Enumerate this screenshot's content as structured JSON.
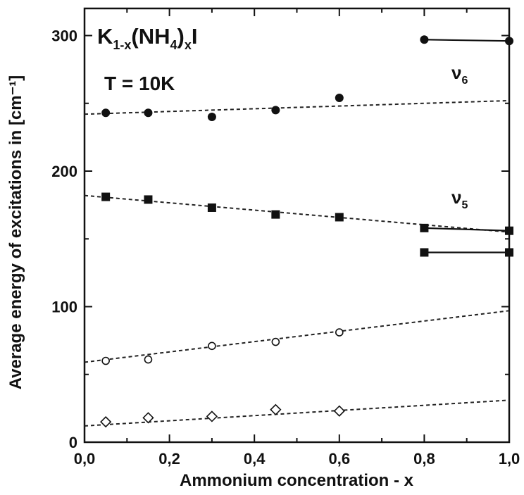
{
  "chart_data": {
    "type": "scatter",
    "xlabel": "Ammonium concentration - x",
    "ylabel": "Average energy of excitations in [cm⁻¹]",
    "xlim": [
      0.0,
      1.0
    ],
    "ylim": [
      0,
      320
    ],
    "x_tick_labels": [
      "0,0",
      "0,2",
      "0,4",
      "0,6",
      "0,8",
      "1,0"
    ],
    "x_ticks": [
      0.0,
      0.2,
      0.4,
      0.6,
      0.8,
      1.0
    ],
    "y_tick_labels": [
      "0",
      "100",
      "200",
      "300"
    ],
    "y_ticks": [
      0,
      100,
      200,
      300
    ],
    "grid": false,
    "annotations": {
      "formula": {
        "a": "K",
        "b": "1-x",
        "c": "(NH",
        "d": "4",
        "e": ")",
        "f": "x",
        "g": "I"
      },
      "temperature": "T = 10K",
      "nu6": {
        "sym": "ν",
        "sub": "6"
      },
      "nu5": {
        "sym": "ν",
        "sub": "5"
      }
    },
    "series": [
      {
        "marker": "filled-circle",
        "x": [
          0.05,
          0.15,
          0.3,
          0.45,
          0.6
        ],
        "y": [
          243,
          243,
          240,
          245,
          254
        ],
        "fit": [
          [
            0.0,
            242
          ],
          [
            1.0,
            252
          ]
        ]
      },
      {
        "marker": "filled-square",
        "x": [
          0.05,
          0.15,
          0.3,
          0.45,
          0.6
        ],
        "y": [
          181,
          179,
          173,
          168,
          166
        ],
        "fit": [
          [
            0.0,
            182
          ],
          [
            1.0,
            155
          ]
        ]
      },
      {
        "marker": "open-circle",
        "x": [
          0.05,
          0.15,
          0.3,
          0.45,
          0.6
        ],
        "y": [
          60,
          61,
          71,
          74,
          81
        ],
        "fit": [
          [
            0.0,
            59
          ],
          [
            1.0,
            97
          ]
        ]
      },
      {
        "marker": "open-diamond",
        "x": [
          0.05,
          0.15,
          0.3,
          0.45,
          0.6
        ],
        "y": [
          15,
          18,
          19,
          24,
          23
        ],
        "fit": [
          [
            0.0,
            12
          ],
          [
            1.0,
            31
          ]
        ]
      },
      {
        "marker": "filled-circle",
        "connected": true,
        "x": [
          0.8,
          1.0
        ],
        "y": [
          297,
          296
        ]
      },
      {
        "marker": "filled-square",
        "connected": true,
        "x": [
          0.8,
          1.0
        ],
        "y": [
          158,
          156
        ]
      },
      {
        "marker": "filled-square",
        "connected": true,
        "x": [
          0.8,
          1.0
        ],
        "y": [
          140,
          140
        ]
      }
    ]
  }
}
